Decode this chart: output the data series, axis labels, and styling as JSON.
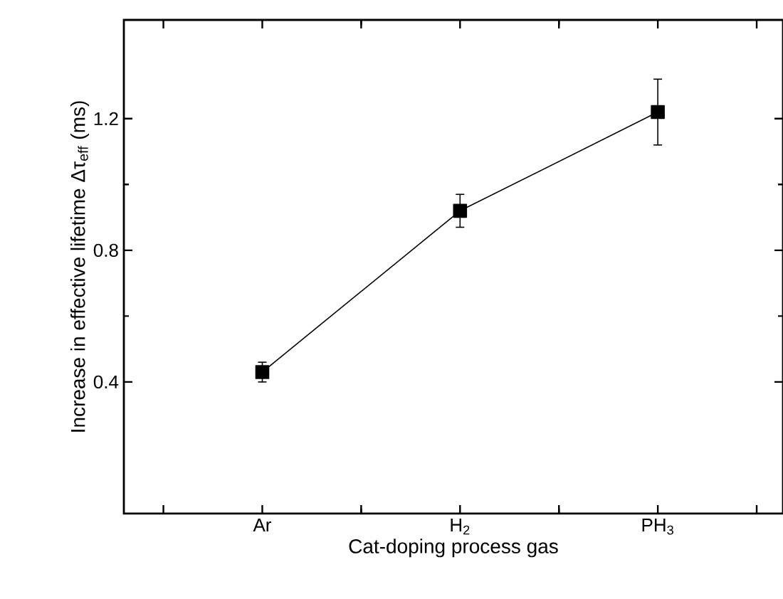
{
  "chart_data": {
    "type": "line",
    "xlabel": "Cat-doping process gas",
    "ylabel": "Increase in effective lifetime Δτ$_{eff}$ (ms)",
    "categories": [
      "Ar",
      "H$_{2}$",
      "PH$_{3}$"
    ],
    "values": [
      0.43,
      0.92,
      1.22
    ],
    "errors": [
      0.03,
      0.05,
      0.1
    ],
    "color": "#000000",
    "marker": "square",
    "line_style": "solid",
    "ylim": [
      0,
      1.5
    ],
    "yticks": [
      0.4,
      0.8,
      1.2
    ]
  }
}
